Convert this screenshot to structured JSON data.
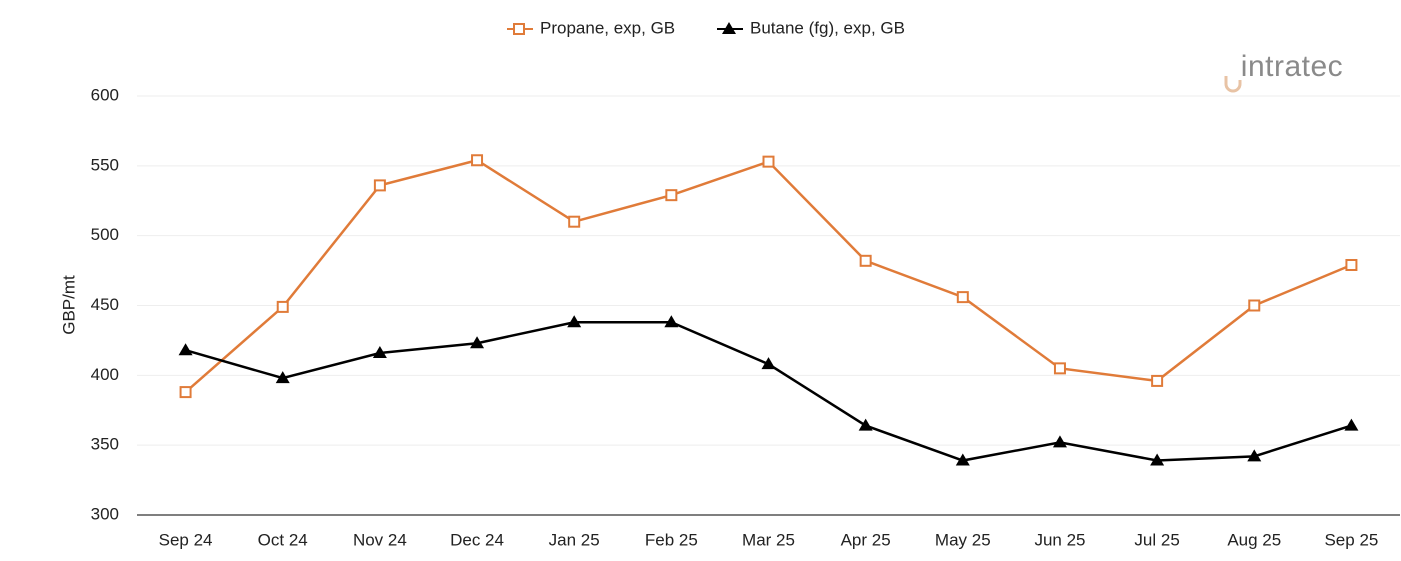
{
  "logo": "intratec",
  "chart_data": {
    "type": "line",
    "y_label": "GBP/mt",
    "categories": [
      "Sep 24",
      "Oct 24",
      "Nov 24",
      "Dec 24",
      "Jan 25",
      "Feb 25",
      "Mar 25",
      "Apr 25",
      "May 25",
      "Jun 25",
      "Jul 25",
      "Aug 25",
      "Sep 25"
    ],
    "series": [
      {
        "name": "Propane, exp, GB",
        "color": "#e07b39",
        "marker": "square",
        "values": [
          388,
          449,
          536,
          554,
          510,
          529,
          553,
          482,
          456,
          405,
          396,
          450,
          479
        ]
      },
      {
        "name": "Butane (fg), exp, GB",
        "color": "#000000",
        "marker": "triangle",
        "values": [
          418,
          398,
          416,
          423,
          438,
          438,
          408,
          364,
          339,
          352,
          339,
          342,
          364
        ]
      }
    ],
    "ylim": [
      300,
      600
    ],
    "yticks": [
      300,
      350,
      400,
      450,
      500,
      550,
      600
    ],
    "grid": true,
    "legend": "top"
  }
}
